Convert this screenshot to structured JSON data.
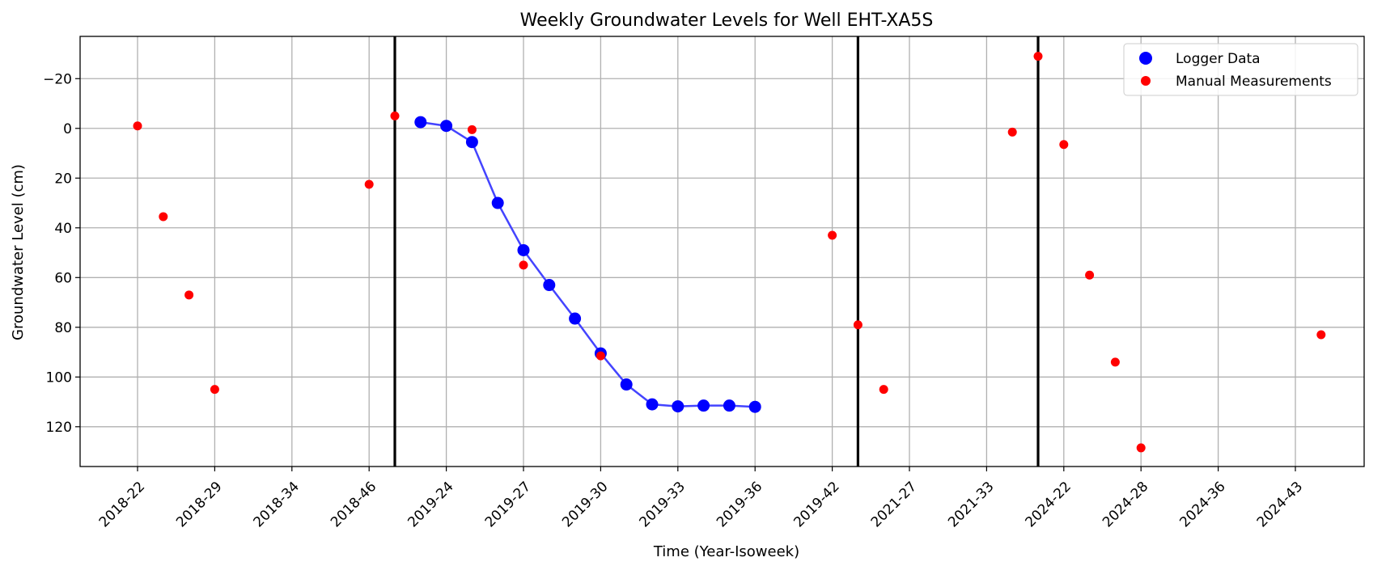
{
  "chart_data": {
    "type": "scatter",
    "title": "Weekly Groundwater Levels for Well EHT-XA5S",
    "xlabel": "Time (Year-Isoweek)",
    "ylabel": "Groundwater Level (cm)",
    "y_inverted": true,
    "ylim": [
      136,
      -37
    ],
    "yticks": [
      -20,
      0,
      20,
      40,
      60,
      80,
      100,
      120
    ],
    "grid": true,
    "legend_position": "top-right",
    "x_tick_labels": [
      "2018-22",
      "2018-29",
      "2018-34",
      "2018-46",
      "2019-24",
      "2019-27",
      "2019-30",
      "2019-33",
      "2019-36",
      "2019-42",
      "2021-27",
      "2021-33",
      "2024-22",
      "2024-28",
      "2024-36",
      "2024-43"
    ],
    "vertical_lines": [
      10,
      28,
      35
    ],
    "colors": {
      "logger": "#0000ff",
      "logger_line": "#4444ff",
      "manual": "#ff0000",
      "vline": "#000000",
      "grid": "#b0b0b0"
    },
    "series": [
      {
        "name": "Logger Data",
        "marker": "circle-large",
        "connected": true,
        "points": [
          {
            "x": 11,
            "y": -2.5
          },
          {
            "x": 12,
            "y": -1
          },
          {
            "x": 13,
            "y": 5.5
          },
          {
            "x": 14,
            "y": 30
          },
          {
            "x": 15,
            "y": 49
          },
          {
            "x": 16,
            "y": 63
          },
          {
            "x": 17,
            "y": 76.5
          },
          {
            "x": 18,
            "y": 90.5
          },
          {
            "x": 19,
            "y": 103
          },
          {
            "x": 20,
            "y": 111
          },
          {
            "x": 21,
            "y": 111.8
          },
          {
            "x": 22,
            "y": 111.5
          },
          {
            "x": 23,
            "y": 111.5
          },
          {
            "x": 24,
            "y": 112
          }
        ]
      },
      {
        "name": "Manual Measurements",
        "marker": "circle-small",
        "connected": false,
        "points": [
          {
            "x": 0,
            "y": -1
          },
          {
            "x": 1,
            "y": 35.5
          },
          {
            "x": 2,
            "y": 67
          },
          {
            "x": 3,
            "y": 105
          },
          {
            "x": 9,
            "y": 22.5
          },
          {
            "x": 10,
            "y": -5
          },
          {
            "x": 13,
            "y": 0.5
          },
          {
            "x": 15,
            "y": 55
          },
          {
            "x": 18,
            "y": 91.5
          },
          {
            "x": 27,
            "y": 43
          },
          {
            "x": 28,
            "y": 79
          },
          {
            "x": 29,
            "y": 105
          },
          {
            "x": 34,
            "y": 1.5
          },
          {
            "x": 35,
            "y": -29
          },
          {
            "x": 36,
            "y": 6.5
          },
          {
            "x": 37,
            "y": 59
          },
          {
            "x": 38,
            "y": 94
          },
          {
            "x": 39,
            "y": 128.5
          },
          {
            "x": 46,
            "y": 83
          }
        ]
      }
    ]
  }
}
